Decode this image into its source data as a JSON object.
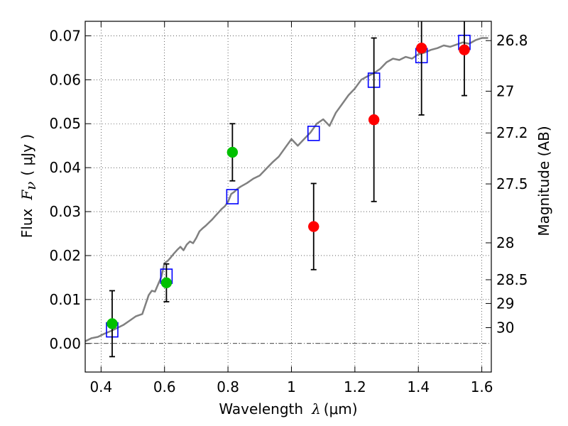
{
  "chart_data": {
    "type": "scatter",
    "title": "",
    "xlabel": {
      "text": "Wavelength",
      "symbol": "λ",
      "unit": "(μm)"
    },
    "ylabel": {
      "text": "Flux",
      "symbol": "F",
      "subscript": "ν",
      "unit": "( μJy )"
    },
    "y2label": "Magnitude (AB)",
    "xlim": [
      0.35,
      1.63
    ],
    "ylim": [
      -0.0065,
      0.0733
    ],
    "grid": true,
    "xticks": [
      {
        "value": 0.4,
        "label": "0.4"
      },
      {
        "value": 0.6,
        "label": "0.6"
      },
      {
        "value": 0.8,
        "label": "0.8"
      },
      {
        "value": 1.0,
        "label": "1"
      },
      {
        "value": 1.2,
        "label": "1.2"
      },
      {
        "value": 1.4,
        "label": "1.4"
      },
      {
        "value": 1.6,
        "label": "1.6"
      }
    ],
    "yticks": [
      {
        "value": 0.0,
        "label": "0.00"
      },
      {
        "value": 0.01,
        "label": "0.01"
      },
      {
        "value": 0.02,
        "label": "0.02"
      },
      {
        "value": 0.03,
        "label": "0.03"
      },
      {
        "value": 0.04,
        "label": "0.04"
      },
      {
        "value": 0.05,
        "label": "0.05"
      },
      {
        "value": 0.06,
        "label": "0.06"
      },
      {
        "value": 0.07,
        "label": "0.07"
      }
    ],
    "y2ticks": [
      {
        "flux": 0.0689,
        "label": "26.8"
      },
      {
        "flux": 0.0574,
        "label": "27"
      },
      {
        "flux": 0.0479,
        "label": "27.2"
      },
      {
        "flux": 0.0363,
        "label": "27.5"
      },
      {
        "flux": 0.0229,
        "label": "28"
      },
      {
        "flux": 0.0145,
        "label": "28.5"
      },
      {
        "flux": 0.0091,
        "label": "29"
      },
      {
        "flux": 0.0036,
        "label": "30"
      }
    ],
    "model_sed": {
      "color": "#808080",
      "x": [
        0.35,
        0.37,
        0.39,
        0.41,
        0.43,
        0.45,
        0.47,
        0.49,
        0.51,
        0.53,
        0.55,
        0.56,
        0.57,
        0.58,
        0.59,
        0.6,
        0.61,
        0.62,
        0.63,
        0.64,
        0.65,
        0.66,
        0.67,
        0.68,
        0.69,
        0.7,
        0.71,
        0.72,
        0.73,
        0.74,
        0.75,
        0.76,
        0.77,
        0.78,
        0.79,
        0.8,
        0.81,
        0.82,
        0.83,
        0.84,
        0.86,
        0.88,
        0.9,
        0.92,
        0.94,
        0.96,
        0.98,
        1.0,
        1.02,
        1.04,
        1.06,
        1.08,
        1.1,
        1.12,
        1.14,
        1.16,
        1.18,
        1.2,
        1.22,
        1.24,
        1.26,
        1.28,
        1.3,
        1.32,
        1.34,
        1.36,
        1.38,
        1.4,
        1.42,
        1.44,
        1.46,
        1.48,
        1.5,
        1.52,
        1.54,
        1.56,
        1.58,
        1.6,
        1.62
      ],
      "y": [
        0.0005,
        0.0012,
        0.0015,
        0.0022,
        0.0028,
        0.0035,
        0.0042,
        0.0052,
        0.0062,
        0.0067,
        0.011,
        0.012,
        0.0118,
        0.0135,
        0.0152,
        0.0183,
        0.0188,
        0.0196,
        0.0205,
        0.0213,
        0.022,
        0.0212,
        0.0225,
        0.0232,
        0.0228,
        0.024,
        0.0255,
        0.0262,
        0.0268,
        0.0275,
        0.0282,
        0.029,
        0.0298,
        0.0306,
        0.0312,
        0.0322,
        0.034,
        0.0345,
        0.0352,
        0.0357,
        0.0365,
        0.0375,
        0.0382,
        0.0397,
        0.0412,
        0.0425,
        0.0445,
        0.0465,
        0.045,
        0.0465,
        0.048,
        0.05,
        0.051,
        0.0495,
        0.0525,
        0.0545,
        0.0565,
        0.058,
        0.06,
        0.0608,
        0.0615,
        0.0625,
        0.064,
        0.0648,
        0.0645,
        0.0652,
        0.0648,
        0.0658,
        0.0662,
        0.0668,
        0.0672,
        0.0678,
        0.0675,
        0.068,
        0.0685,
        0.0682,
        0.069,
        0.0695,
        0.0695
      ]
    },
    "series": [
      {
        "marker": "open-square",
        "color": "#0000ff",
        "points": [
          {
            "x": 0.435,
            "y": 0.0031
          },
          {
            "x": 0.606,
            "y": 0.0153
          },
          {
            "x": 0.814,
            "y": 0.0334
          },
          {
            "x": 1.07,
            "y": 0.0478
          },
          {
            "x": 1.26,
            "y": 0.0599
          },
          {
            "x": 1.41,
            "y": 0.0655
          },
          {
            "x": 1.545,
            "y": 0.0685
          }
        ]
      },
      {
        "marker": "filled-circle",
        "color": "#00c000",
        "points": [
          {
            "x": 0.435,
            "y": 0.0045,
            "err": 0.0075
          },
          {
            "x": 0.606,
            "y": 0.0138,
            "err": 0.0043
          },
          {
            "x": 0.814,
            "y": 0.0435,
            "err": 0.0065
          }
        ]
      },
      {
        "marker": "filled-circle",
        "color": "#ff0000",
        "points": [
          {
            "x": 1.07,
            "y": 0.0266,
            "err": 0.0098
          },
          {
            "x": 1.26,
            "y": 0.0509,
            "err": 0.0186
          },
          {
            "x": 1.41,
            "y": 0.0672,
            "err": 0.0152
          },
          {
            "x": 1.545,
            "y": 0.0668,
            "err": 0.0104
          }
        ]
      }
    ],
    "zero_line": {
      "value": 0.0,
      "style": "dash-dot"
    },
    "colors": {
      "axis": "#000000",
      "grid": "#000000",
      "errorbar": "#000000"
    }
  }
}
